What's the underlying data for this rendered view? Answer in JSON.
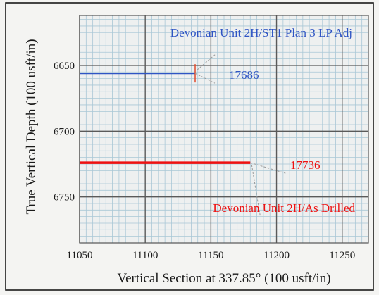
{
  "chart_data": {
    "type": "line",
    "title": "",
    "xlabel": "Vertical Section at 337.85° (100 usft/in)",
    "ylabel": "True Vertical Depth (100 usft/in)",
    "xlim": [
      11050,
      11270
    ],
    "ylim": [
      6785,
      6612
    ],
    "y_inverted": true,
    "grid": true,
    "x_ticks": [
      11050,
      11100,
      11150,
      11200,
      11250
    ],
    "y_ticks": [
      6650,
      6700,
      6750
    ],
    "series": [
      {
        "name": "Devonian Unit 2H/ST1 Plan 3 LP Adj",
        "color": "#2f55c4",
        "x": [
          11050,
          11138
        ],
        "y": [
          6656,
          6656
        ],
        "marker_x": 11138,
        "marker_y": 6656,
        "end_label": "17686"
      },
      {
        "name": "Devonian Unit 2H/As Drilled",
        "color": "#ee1111",
        "x": [
          11050,
          11180
        ],
        "y": [
          6724,
          6724
        ],
        "end_label": "17736"
      }
    ]
  },
  "colors": {
    "grid_major": "#5a5a5a",
    "grid_minor": "#a9c7d6",
    "plot_bg": "#eef0f0"
  }
}
